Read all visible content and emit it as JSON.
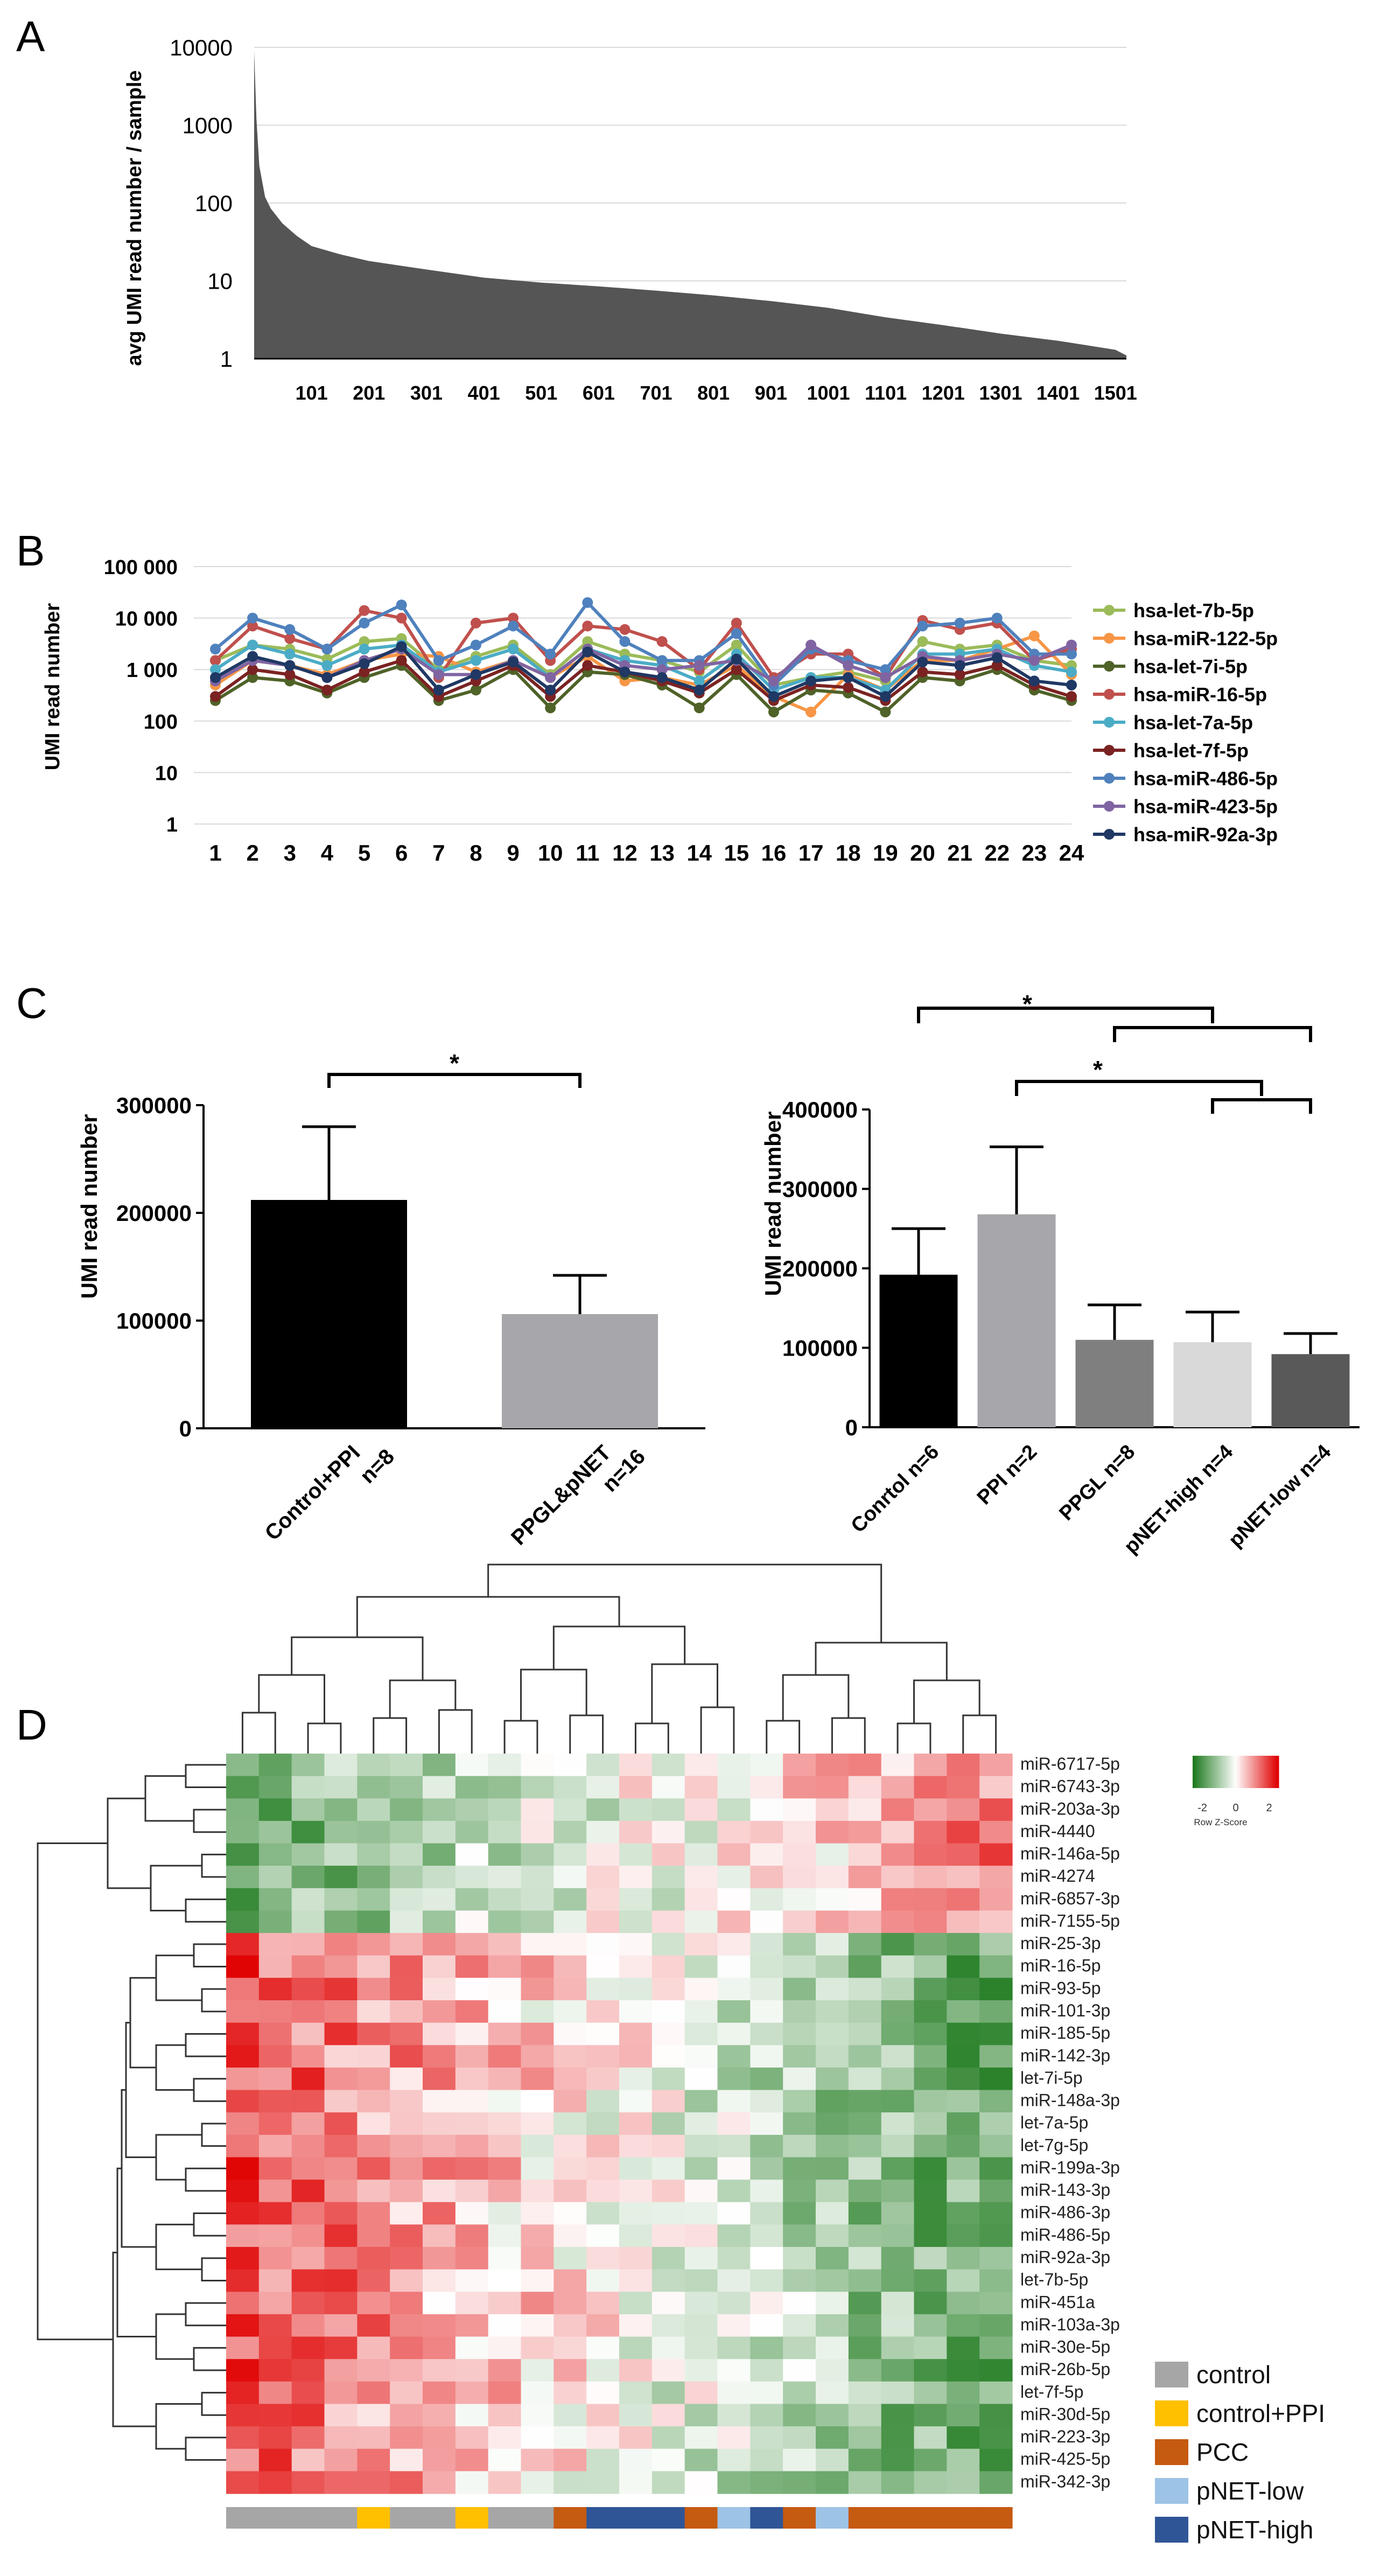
{
  "panels": {
    "A": {
      "letter": "A"
    },
    "B": {
      "letter": "B"
    },
    "C": {
      "letter": "C"
    },
    "D": {
      "letter": "D"
    }
  },
  "colors": {
    "dark_fill": "#555555",
    "axis": "#000000",
    "grid": "#d9d9d9",
    "heat_low": "#1e7a1e",
    "heat_mid": "#ffffff",
    "heat_high": "#e00000"
  },
  "chart_data": [
    {
      "panel": "A",
      "type": "area",
      "ylabel": "avg UMI read number / sample",
      "yscale": "log",
      "ylim": [
        1,
        10000
      ],
      "yticks": [
        "1",
        "10",
        "100",
        "1000",
        "10000"
      ],
      "xticks": [
        "101",
        "201",
        "301",
        "401",
        "501",
        "601",
        "701",
        "801",
        "901",
        "1001",
        "1101",
        "1201",
        "1301",
        "1401",
        "1501"
      ],
      "xlim": [
        1,
        1520
      ],
      "curve": {
        "x": [
          1,
          5,
          10,
          20,
          30,
          50,
          75,
          101,
          150,
          201,
          301,
          401,
          501,
          601,
          701,
          801,
          901,
          1001,
          1101,
          1201,
          1301,
          1401,
          1501,
          1520
        ],
        "y": [
          9000,
          1200,
          300,
          120,
          85,
          55,
          38,
          28,
          22,
          18,
          14,
          11,
          9.5,
          8.5,
          7.5,
          6.5,
          5.5,
          4.5,
          3.4,
          2.7,
          2.1,
          1.7,
          1.3,
          1.1
        ]
      }
    },
    {
      "panel": "B",
      "type": "line",
      "ylabel": "UMI read number",
      "yscale": "log",
      "ylim": [
        1,
        100000
      ],
      "yticks": [
        "1",
        "10",
        "100",
        "1 000",
        "10 000",
        "100 000"
      ],
      "categories": [
        "1",
        "2",
        "3",
        "4",
        "5",
        "6",
        "7",
        "8",
        "9",
        "10",
        "11",
        "12",
        "13",
        "14",
        "15",
        "16",
        "17",
        "18",
        "19",
        "20",
        "21",
        "22",
        "23",
        "24"
      ],
      "series": [
        {
          "name": "hsa-let-7b-5p",
          "color": "#9bbb59",
          "values": [
            1500,
            3000,
            2500,
            1600,
            3500,
            4000,
            1000,
            1800,
            3000,
            800,
            3500,
            2000,
            1500,
            900,
            3000,
            500,
            700,
            900,
            600,
            3500,
            2500,
            3000,
            1500,
            1200
          ]
        },
        {
          "name": "hsa-miR-122-5p",
          "color": "#f79646",
          "values": [
            500,
            1500,
            1200,
            800,
            1500,
            2000,
            1800,
            900,
            1500,
            700,
            1800,
            600,
            700,
            500,
            1200,
            300,
            150,
            800,
            400,
            1500,
            1500,
            2500,
            4500,
            800
          ]
        },
        {
          "name": "hsa-let-7i-5p",
          "color": "#4f6228",
          "values": [
            250,
            700,
            600,
            350,
            700,
            1200,
            250,
            400,
            1000,
            180,
            900,
            800,
            500,
            180,
            800,
            150,
            400,
            350,
            150,
            700,
            600,
            1000,
            400,
            250
          ]
        },
        {
          "name": "hsa-miR-16-5p",
          "color": "#c0504d",
          "values": [
            1500,
            7000,
            4000,
            2500,
            14000,
            10000,
            700,
            8000,
            10000,
            1500,
            7000,
            6000,
            3500,
            1000,
            8000,
            700,
            2000,
            2000,
            700,
            9000,
            6000,
            8000,
            1500,
            2500
          ]
        },
        {
          "name": "hsa-let-7a-5p",
          "color": "#4bacc6",
          "values": [
            1000,
            3000,
            2000,
            1200,
            2500,
            3000,
            900,
            1500,
            2500,
            700,
            2500,
            1500,
            1200,
            600,
            2000,
            400,
            700,
            700,
            400,
            2000,
            2000,
            2500,
            1200,
            900
          ]
        },
        {
          "name": "hsa-let-7f-5p",
          "color": "#7b2222",
          "values": [
            300,
            1000,
            800,
            400,
            900,
            1500,
            300,
            600,
            1200,
            300,
            1200,
            900,
            600,
            350,
            1000,
            250,
            500,
            450,
            250,
            900,
            800,
            1200,
            500,
            300
          ]
        },
        {
          "name": "hsa-miR-486-5p",
          "color": "#4f81bd",
          "values": [
            2500,
            10000,
            6000,
            2500,
            8000,
            18000,
            1500,
            3000,
            7000,
            2000,
            20000,
            3500,
            1500,
            1500,
            5000,
            500,
            2500,
            1500,
            1000,
            7000,
            8000,
            10000,
            2000,
            2000
          ]
        },
        {
          "name": "hsa-miR-423-5p",
          "color": "#8064a2",
          "values": [
            600,
            1500,
            1200,
            700,
            1500,
            2500,
            800,
            800,
            1500,
            700,
            2500,
            1200,
            1000,
            1200,
            1500,
            600,
            3000,
            1200,
            700,
            1800,
            1500,
            2000,
            1500,
            3000
          ]
        },
        {
          "name": "hsa-miR-92a-3p",
          "color": "#1f3864",
          "values": [
            700,
            1800,
            1200,
            700,
            1300,
            2800,
            400,
            800,
            1400,
            400,
            2200,
            900,
            700,
            400,
            1600,
            300,
            600,
            700,
            300,
            1400,
            1200,
            1700,
            600,
            500
          ]
        }
      ]
    },
    {
      "panel": "C-left",
      "type": "bar",
      "ylabel": "UMI read number",
      "ylim": [
        0,
        300000
      ],
      "yticks": [
        "0",
        "100000",
        "200000",
        "300000"
      ],
      "categories": [
        "Control+PPI",
        "PPGL&pNET"
      ],
      "category_lines": [
        [
          "Control+PPI",
          "n=8"
        ],
        [
          "PPGL&pNET",
          "n=16"
        ]
      ],
      "values": [
        212000,
        106000
      ],
      "errors": [
        68000,
        36000
      ],
      "bar_colors": [
        "#000000",
        "#a6a6ab"
      ],
      "significance": "*"
    },
    {
      "panel": "C-right",
      "type": "bar",
      "ylabel": "UMI read number",
      "ylim": [
        0,
        400000
      ],
      "yticks": [
        "0",
        "100000",
        "200000",
        "300000",
        "400000"
      ],
      "categories": [
        "Conrtol n=6",
        "PPI n=2",
        "PPGL n=8",
        "pNET-high n=4",
        "pNET-low n=4"
      ],
      "values": [
        192000,
        268000,
        110000,
        107000,
        92000
      ],
      "errors": [
        58000,
        85000,
        44000,
        38000,
        26000
      ],
      "bar_colors": [
        "#000000",
        "#a6a6ab",
        "#7f7f7f",
        "#d9d9d9",
        "#595959"
      ],
      "significance": [
        "*",
        "*"
      ]
    },
    {
      "panel": "D",
      "type": "heatmap",
      "rows": [
        "miR-6717-5p",
        "miR-6743-3p",
        "miR-203a-3p",
        "miR-4440",
        "miR-146a-5p",
        "miR-4274",
        "miR-6857-3p",
        "miR-7155-5p",
        "miR-25-3p",
        "miR-16-5p",
        "miR-93-5p",
        "miR-101-3p",
        "miR-185-5p",
        "miR-142-3p",
        "let-7i-5p",
        "miR-148a-3p",
        "let-7a-5p",
        "let-7g-5p",
        "miR-199a-3p",
        "miR-143-3p",
        "miR-486-3p",
        "miR-486-5p",
        "miR-92a-3p",
        "let-7b-5p",
        "miR-451a",
        "miR-103a-3p",
        "miR-30e-5p",
        "miR-26b-5p",
        "let-7f-5p",
        "miR-30d-5p",
        "miR-223-3p",
        "miR-425-5p",
        "miR-342-3p"
      ],
      "n_columns": 24,
      "column_groups": [
        "control",
        "control",
        "control",
        "control",
        "control+PPI",
        "control",
        "control",
        "control+PPI",
        "control",
        "control",
        "PCC",
        "pNET-high",
        "pNET-high",
        "pNET-high",
        "PCC",
        "pNET-low",
        "pNET-high",
        "PCC",
        "pNET-low",
        "PCC",
        "PCC",
        "PCC",
        "PCC",
        "PCC"
      ],
      "legend_title": "Row Z-Score",
      "scale_ticks": [
        "-2",
        "0",
        "2"
      ],
      "group_legend": [
        {
          "label": "control",
          "color": "#a6a6a6"
        },
        {
          "label": "control+PPI",
          "color": "#ffc000"
        },
        {
          "label": "PCC",
          "color": "#c55a11"
        },
        {
          "label": "pNET-low",
          "color": "#9dc3e6"
        },
        {
          "label": "pNET-high",
          "color": "#2f5597"
        }
      ]
    }
  ]
}
